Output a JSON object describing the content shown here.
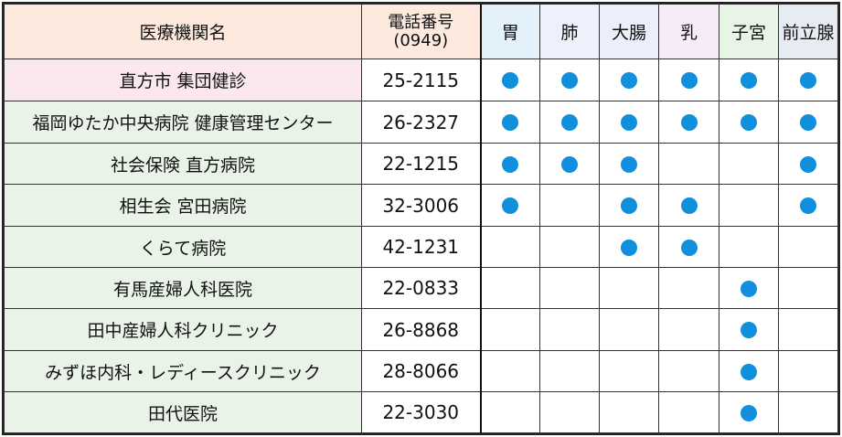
{
  "header": {
    "name": "医療機関名",
    "phone_line1": "電話番号",
    "phone_line2": "(0949)"
  },
  "categories": [
    {
      "label": "胃",
      "color": "#e3f1fb"
    },
    {
      "label": "肺",
      "color": "#eef1fb"
    },
    {
      "label": "大腸",
      "color": "#edeefb"
    },
    {
      "label": "乳",
      "color": "#f6ecf7"
    },
    {
      "label": "子宮",
      "color": "#e7f4e6"
    },
    {
      "label": "前立腺",
      "color": "#e7ecf3"
    }
  ],
  "rows": [
    {
      "name": "直方市 集団健診",
      "phone": "25-2115",
      "marks": [
        true,
        true,
        true,
        true,
        true,
        true
      ]
    },
    {
      "name": "福岡ゆたか中央病院 健康管理センター",
      "phone": "26-2327",
      "marks": [
        true,
        true,
        true,
        true,
        true,
        true
      ]
    },
    {
      "name": "社会保険 直方病院",
      "phone": "22-1215",
      "marks": [
        true,
        true,
        true,
        false,
        false,
        true
      ]
    },
    {
      "name": "相生会 宮田病院",
      "phone": "32-3006",
      "marks": [
        true,
        false,
        true,
        true,
        false,
        true
      ]
    },
    {
      "name": "くらて病院",
      "phone": "42-1231",
      "marks": [
        false,
        false,
        true,
        true,
        false,
        false
      ]
    },
    {
      "name": "有馬産婦人科医院",
      "phone": "22-0833",
      "marks": [
        false,
        false,
        false,
        false,
        true,
        false
      ]
    },
    {
      "name": "田中産婦人科クリニック",
      "phone": "26-8868",
      "marks": [
        false,
        false,
        false,
        false,
        true,
        false
      ]
    },
    {
      "name": "みずほ内科・レディースクリニック",
      "phone": "28-8066",
      "marks": [
        false,
        false,
        false,
        false,
        true,
        false
      ]
    },
    {
      "name": "田代医院",
      "phone": "22-3030",
      "marks": [
        false,
        false,
        false,
        false,
        true,
        false
      ]
    }
  ],
  "dot_color": "#0f8fdc"
}
